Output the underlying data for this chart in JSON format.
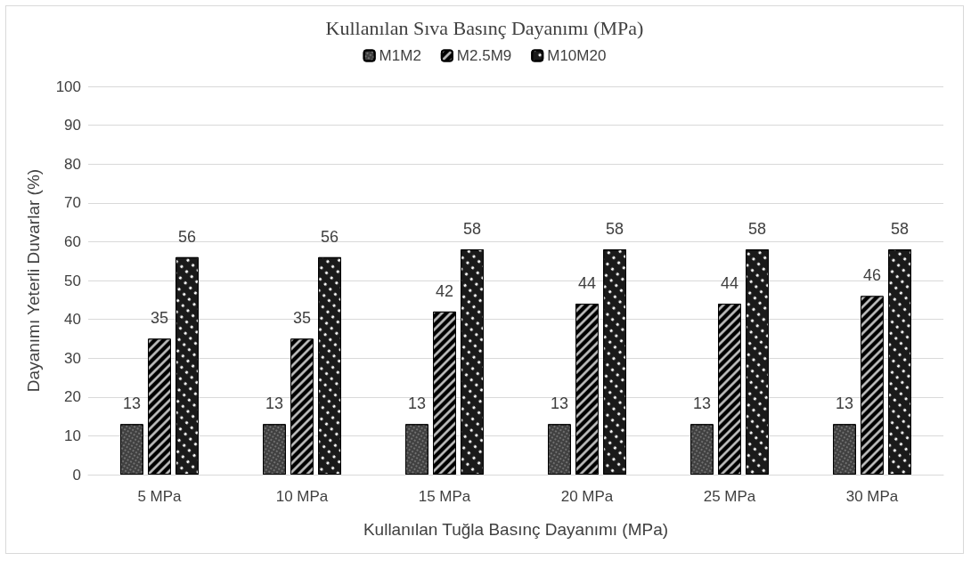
{
  "chart_data": {
    "type": "bar",
    "title": "Kullanılan Sıva Basınç Dayanımı (MPa)",
    "xlabel": "Kullanılan Tuğla Basınç Dayanımı (MPa)",
    "ylabel": "Dayanımı Yeterli Duvarlar (%)",
    "categories": [
      "5 MPa",
      "10 MPa",
      "15 MPa",
      "20 MPa",
      "25 MPa",
      "30 MPa"
    ],
    "series": [
      {
        "name": "M1M2",
        "color": "#404040",
        "values": [
          13,
          13,
          13,
          13,
          13,
          13
        ]
      },
      {
        "name": "M2.5M9",
        "color": "#000000",
        "values": [
          35,
          35,
          42,
          44,
          44,
          46
        ]
      },
      {
        "name": "M10M20",
        "color": "#1a1a1a",
        "values": [
          56,
          56,
          58,
          58,
          58,
          58
        ]
      }
    ],
    "ylim": [
      0,
      100
    ],
    "yticks": [
      0,
      10,
      20,
      30,
      40,
      50,
      60,
      70,
      80,
      90,
      100
    ],
    "grid": "y",
    "legend": "top",
    "data_labels": true
  }
}
